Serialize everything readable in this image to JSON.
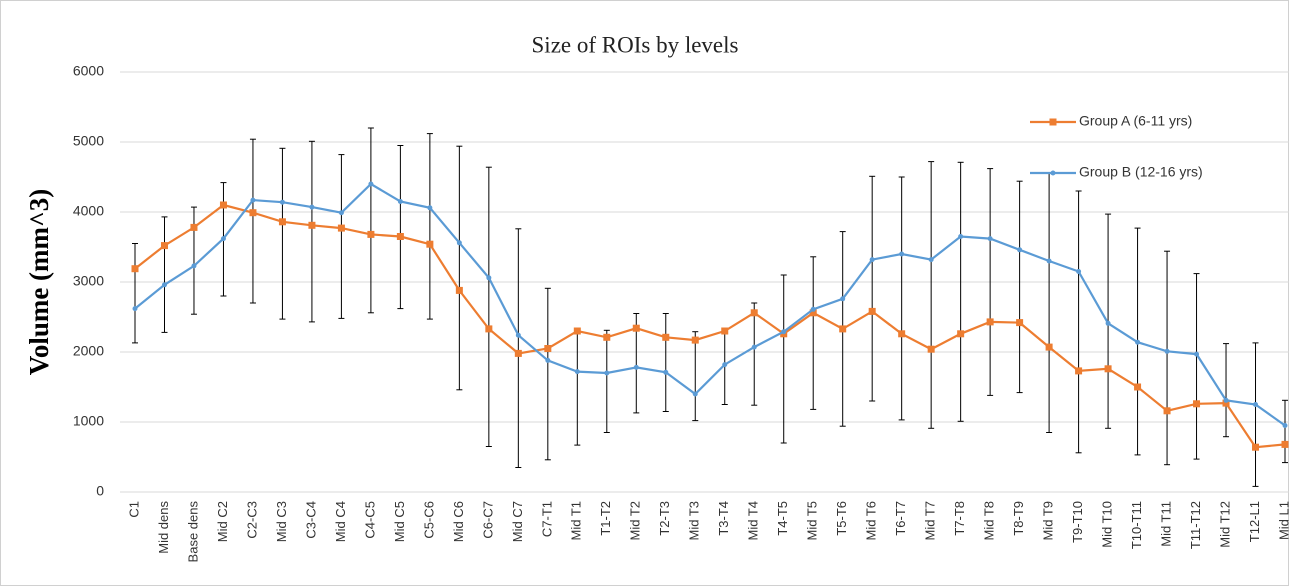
{
  "chart_data": {
    "type": "line",
    "title": "Size of ROIs by levels",
    "y_label": "Volume (mm^3)",
    "categories": [
      "C1",
      "Mid dens",
      "Base dens",
      "Mid C2",
      "C2-C3",
      "Mid C3",
      "C3-C4",
      "Mid C4",
      "C4-C5",
      "Mid C5",
      "C5-C6",
      "Mid C6",
      "C6-C7",
      "Mid C7",
      "C7-T1",
      "Mid T1",
      "T1-T2",
      "Mid T2",
      "T2-T3",
      "Mid T3",
      "T3-T4",
      "Mid T4",
      "T4-T5",
      "Mid T5",
      "T5-T6",
      "Mid T6",
      "T6-T7",
      "Mid T7",
      "T7-T8",
      "Mid T8",
      "T8-T9",
      "Mid T9",
      "T9-T10",
      "Mid T10",
      "T10-T11",
      "Mid T11",
      "T11-T12",
      "Mid T12",
      "T12-L1",
      "Mid L1"
    ],
    "series": [
      {
        "name": "Group A (6-11 yrs)",
        "color": "#ed7d31",
        "marker": "square",
        "values": [
          3190,
          3520,
          3780,
          4100,
          3990,
          3860,
          3810,
          3770,
          3680,
          3650,
          3540,
          2880,
          2330,
          1980,
          2050,
          2300,
          2210,
          2340,
          2210,
          2170,
          2300,
          2560,
          2260,
          2560,
          2330,
          2580,
          2260,
          2040,
          2260,
          2430,
          2420,
          2070,
          1730,
          1760,
          1500,
          1160,
          1260,
          1270,
          640,
          680
        ]
      },
      {
        "name": "Group B (12-16 yrs)",
        "color": "#5b9bd5",
        "marker": "circle",
        "values": [
          2620,
          2960,
          3230,
          3620,
          4170,
          4140,
          4070,
          3990,
          4400,
          4150,
          4060,
          3560,
          3060,
          2240,
          1880,
          1720,
          1700,
          1780,
          1710,
          1400,
          1820,
          2070,
          2290,
          2610,
          2760,
          3320,
          3400,
          3320,
          3650,
          3620,
          3460,
          3300,
          3150,
          2410,
          2140,
          2010,
          1970,
          1310,
          1250,
          950
        ]
      }
    ],
    "error_bars": {
      "color": "#000000",
      "low": [
        2130,
        2280,
        2540,
        2800,
        2700,
        2470,
        2430,
        2480,
        2560,
        2620,
        2470,
        1460,
        650,
        350,
        460,
        670,
        850,
        1130,
        1150,
        1020,
        1250,
        1240,
        700,
        1180,
        940,
        1300,
        1030,
        910,
        1010,
        1380,
        1420,
        850,
        560,
        910,
        530,
        390,
        470,
        790,
        80,
        420
      ],
      "high": [
        3550,
        3930,
        4070,
        4420,
        5040,
        4910,
        5010,
        4820,
        5200,
        4950,
        5120,
        4940,
        4640,
        3760,
        2910,
        2310,
        2310,
        2550,
        2550,
        2290,
        2300,
        2700,
        3100,
        3360,
        3720,
        4510,
        4500,
        4720,
        4710,
        4620,
        4440,
        4550,
        4300,
        3970,
        3770,
        3440,
        3120,
        2120,
        2130,
        1310
      ]
    },
    "ylim": [
      0,
      6000
    ],
    "yticks": [
      0,
      1000,
      2000,
      3000,
      4000,
      5000,
      6000
    ],
    "grid": true
  }
}
